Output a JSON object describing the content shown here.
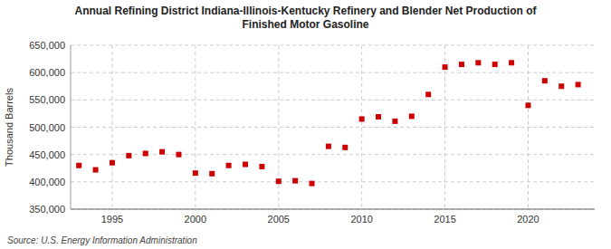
{
  "chart_data": {
    "type": "scatter",
    "title": "Annual Refining District Indiana-Illinois-Kentucky Refinery and Blender Net Production of\nFinished Motor Gasoline",
    "ylabel": "Thousand Barrels",
    "source": "Source: U.S. Energy Information Administration",
    "color": "#cc0000",
    "marker": "square",
    "grid": true,
    "x": [
      1993,
      1994,
      1995,
      1996,
      1997,
      1998,
      1999,
      2000,
      2001,
      2002,
      2003,
      2004,
      2005,
      2006,
      2007,
      2008,
      2009,
      2010,
      2011,
      2012,
      2013,
      2014,
      2015,
      2016,
      2017,
      2018,
      2019,
      2020,
      2021,
      2022,
      2023
    ],
    "values": [
      430000,
      422000,
      435000,
      448000,
      452000,
      455000,
      450000,
      416000,
      415000,
      430000,
      432000,
      428000,
      401000,
      402000,
      397000,
      465000,
      463000,
      515000,
      519000,
      511000,
      520000,
      560000,
      610000,
      615000,
      618000,
      615000,
      618000,
      540000,
      585000,
      575000,
      578000
    ],
    "xlim": [
      1992.5,
      2024
    ],
    "xticks": [
      1995,
      2000,
      2005,
      2010,
      2015,
      2020
    ],
    "ylim": [
      350000,
      650000
    ],
    "yticks": [
      {
        "value": 350000,
        "label": "350,000"
      },
      {
        "value": 400000,
        "label": "400,000"
      },
      {
        "value": 450000,
        "label": "450,000"
      },
      {
        "value": 500000,
        "label": "500,000"
      },
      {
        "value": 550000,
        "label": "550,000"
      },
      {
        "value": 600000,
        "label": "600,000"
      },
      {
        "value": 650000,
        "label": "650,000"
      }
    ]
  }
}
